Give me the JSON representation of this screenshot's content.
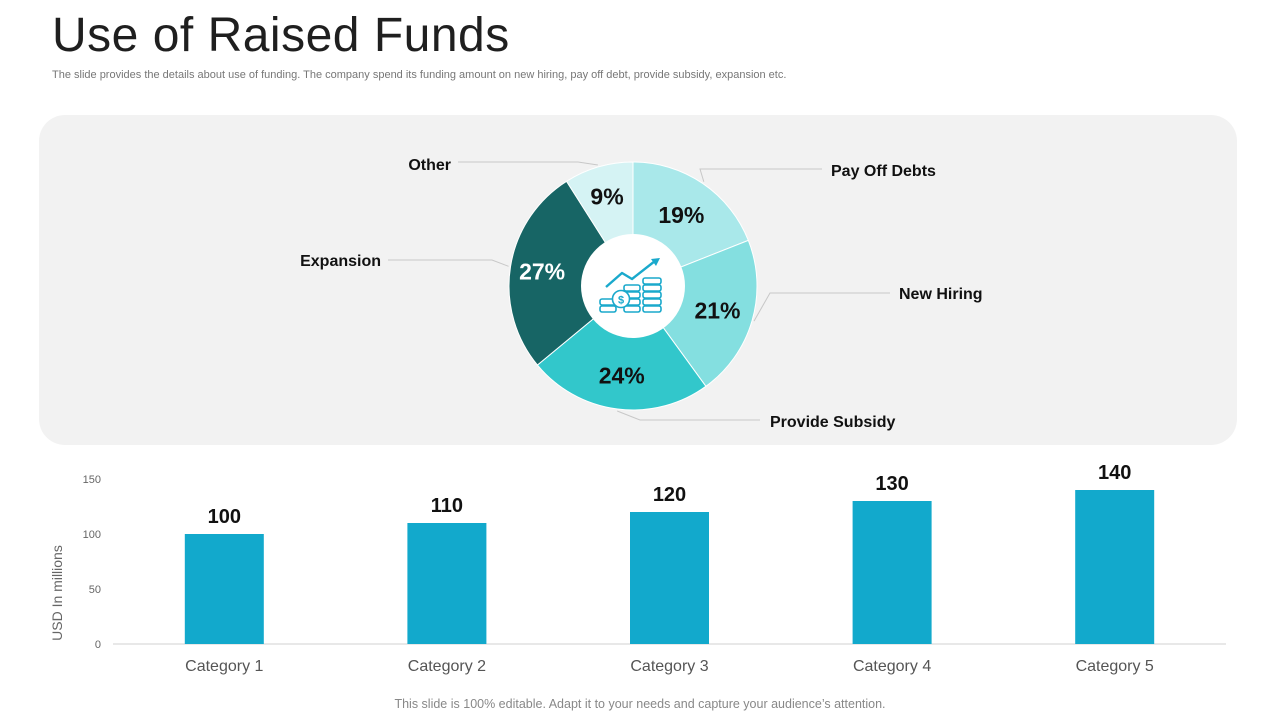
{
  "header": {
    "title": "Use of Raised Funds",
    "subtitle": "The slide provides the details about use of funding. The company spend its funding amount on new hiring, pay off debt, provide subsidy, expansion etc."
  },
  "footer": {
    "text": "This slide is 100% editable. Adapt it to your needs and capture your audience’s attention."
  },
  "center_icon": "money-growth-icon",
  "colors": {
    "panel_bg": "#f2f2f2",
    "bar": "#12a9cc",
    "pie": [
      "#a9e8ea",
      "#84dfe0",
      "#32c7cb",
      "#176565",
      "#d5f3f4"
    ],
    "pct_text_dark": "#111111",
    "pct_text_light": "#ffffff"
  },
  "chart_data": [
    {
      "type": "pie",
      "donut": true,
      "slices": [
        {
          "label": "Pay Off Debts",
          "value": 19,
          "pct_text": "19%"
        },
        {
          "label": "New Hiring",
          "value": 21,
          "pct_text": "21%"
        },
        {
          "label": "Provide Subsidy",
          "value": 24,
          "pct_text": "24%"
        },
        {
          "label": "Expansion",
          "value": 27,
          "pct_text": "27%"
        },
        {
          "label": "Other",
          "value": 9,
          "pct_text": "9%"
        }
      ]
    },
    {
      "type": "bar",
      "categories": [
        "Category 1",
        "Category 2",
        "Category 3",
        "Category 4",
        "Category 5"
      ],
      "values": [
        100,
        110,
        120,
        130,
        140
      ],
      "value_labels": [
        "100",
        "110",
        "120",
        "130",
        "140"
      ],
      "ylabel": "USD In millions",
      "ylim": [
        0,
        150
      ],
      "yticks": [
        "0",
        "50",
        "100",
        "150"
      ],
      "grid": false
    }
  ]
}
